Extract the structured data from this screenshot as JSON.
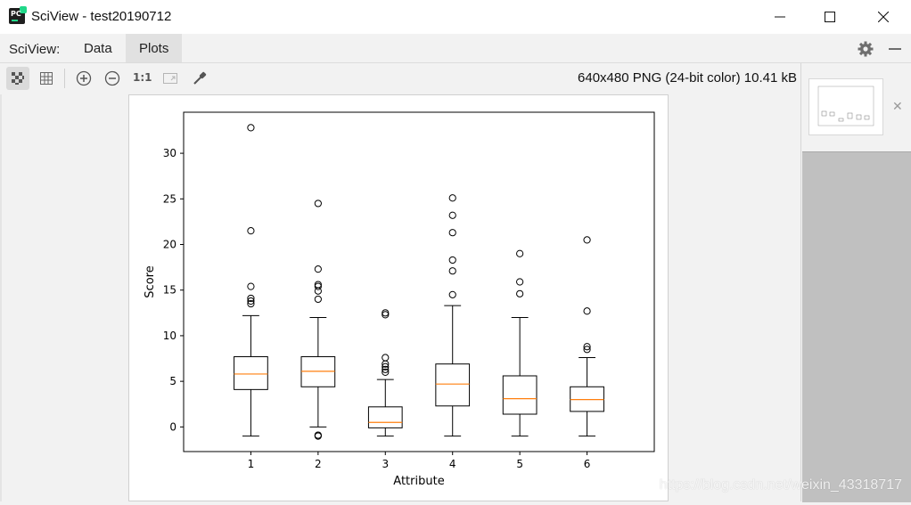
{
  "window": {
    "title": "SciView - test20190712",
    "app_icon_text": "PC"
  },
  "menu": {
    "label": "SciView:",
    "tabs": [
      {
        "label": "Data",
        "active": false
      },
      {
        "label": "Plots",
        "active": true
      }
    ]
  },
  "toolbar": {
    "tools": [
      "show-transparency-checkerboard",
      "show-grid",
      "zoom-in",
      "zoom-out",
      "actual-size",
      "fit-to-window",
      "color-picker"
    ],
    "actual_size_label": "1:1"
  },
  "image_info": "640x480 PNG (24-bit color) 10.41 kB",
  "thumbnail": {
    "close_symbol": "✕"
  },
  "watermark": "https://blog.csdn.net/weixin_43318717",
  "chart_data": {
    "type": "boxplot",
    "title": "",
    "xlabel": "Attribute",
    "ylabel": "Score",
    "categories": [
      "1",
      "2",
      "3",
      "4",
      "5",
      "6"
    ],
    "ylim": [
      -2.7,
      34.5
    ],
    "yticks": [
      0,
      5,
      10,
      15,
      20,
      25,
      30
    ],
    "colors": {
      "box": "#000000",
      "median": "#ff7f0e",
      "flier": "#000000"
    },
    "boxes": [
      {
        "label": "1",
        "whisker_low": -1,
        "q1": 4.1,
        "median": 5.8,
        "q3": 7.7,
        "whisker_high": 12.2,
        "fliers": [
          13.5,
          13.8,
          14.1,
          15.4,
          21.5,
          32.8
        ]
      },
      {
        "label": "2",
        "whisker_low": 0,
        "q1": 4.4,
        "median": 6.1,
        "q3": 7.7,
        "whisker_high": 12.0,
        "fliers": [
          -0.9,
          -1.0,
          14.0,
          14.9,
          15.4,
          15.6,
          17.3,
          24.5
        ]
      },
      {
        "label": "3",
        "whisker_low": -1,
        "q1": -0.1,
        "median": 0.5,
        "q3": 2.2,
        "whisker_high": 5.2,
        "fliers": [
          6.0,
          6.3,
          6.6,
          6.9,
          7.6,
          12.3,
          12.5
        ]
      },
      {
        "label": "4",
        "whisker_low": -1,
        "q1": 2.3,
        "median": 4.7,
        "q3": 6.9,
        "whisker_high": 13.3,
        "fliers": [
          14.5,
          17.1,
          18.3,
          21.3,
          23.2,
          25.1
        ]
      },
      {
        "label": "5",
        "whisker_low": -1,
        "q1": 1.4,
        "median": 3.1,
        "q3": 5.6,
        "whisker_high": 12.0,
        "fliers": [
          14.6,
          15.9,
          19.0
        ]
      },
      {
        "label": "6",
        "whisker_low": -1,
        "q1": 1.7,
        "median": 3.0,
        "q3": 4.4,
        "whisker_high": 7.6,
        "fliers": [
          8.5,
          8.8,
          12.7,
          20.5
        ]
      }
    ]
  }
}
